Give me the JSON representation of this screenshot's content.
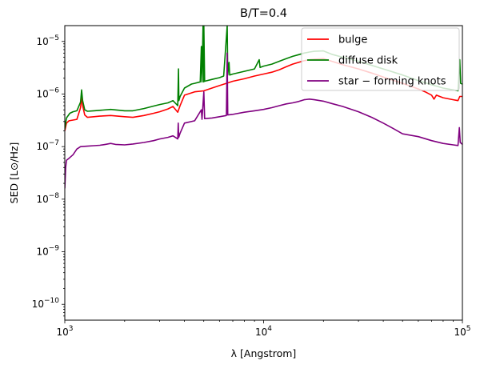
{
  "chart_data": {
    "type": "line",
    "title": "B/T=0.4",
    "xlabel": "λ [Angstrom]",
    "ylabel": "SED [L⊙/Hz]",
    "xscale": "log",
    "yscale": "log",
    "xlim": [
      1000,
      100000
    ],
    "ylim": [
      5e-11,
      2e-05
    ],
    "grid": false,
    "legend_position": "top-right",
    "x_ticks": [
      {
        "value": 1000,
        "base": "10",
        "exp": "3"
      },
      {
        "value": 10000,
        "base": "10",
        "exp": "4"
      },
      {
        "value": 100000,
        "base": "10",
        "exp": "5"
      }
    ],
    "y_ticks": [
      {
        "value": 1e-10,
        "base": "10",
        "exp": "−10"
      },
      {
        "value": 1e-09,
        "base": "10",
        "exp": "−9"
      },
      {
        "value": 1e-08,
        "base": "10",
        "exp": "−8"
      },
      {
        "value": 1e-07,
        "base": "10",
        "exp": "−7"
      },
      {
        "value": 1e-06,
        "base": "10",
        "exp": "−6"
      },
      {
        "value": 1e-05,
        "base": "10",
        "exp": "−5"
      }
    ],
    "series": [
      {
        "name": "bulge",
        "color": "#ff0000",
        "points": [
          [
            1000,
            2e-07
          ],
          [
            1020,
            2.8e-07
          ],
          [
            1050,
            3.1e-07
          ],
          [
            1100,
            3.2e-07
          ],
          [
            1150,
            3.3e-07
          ],
          [
            1200,
            5.5e-07
          ],
          [
            1215,
            9e-07
          ],
          [
            1230,
            6e-07
          ],
          [
            1260,
            4e-07
          ],
          [
            1300,
            3.6e-07
          ],
          [
            1400,
            3.7e-07
          ],
          [
            1500,
            3.8e-07
          ],
          [
            1700,
            3.9e-07
          ],
          [
            2000,
            3.7e-07
          ],
          [
            2200,
            3.6e-07
          ],
          [
            2500,
            3.9e-07
          ],
          [
            2800,
            4.3e-07
          ],
          [
            3000,
            4.6e-07
          ],
          [
            3300,
            5.2e-07
          ],
          [
            3500,
            5.8e-07
          ],
          [
            3700,
            4.5e-07
          ],
          [
            3800,
            6e-07
          ],
          [
            4000,
            9.5e-07
          ],
          [
            4500,
            1.1e-06
          ],
          [
            5000,
            1.15e-06
          ],
          [
            5500,
            1.3e-06
          ],
          [
            6000,
            1.45e-06
          ],
          [
            6500,
            1.6e-06
          ],
          [
            7000,
            1.75e-06
          ],
          [
            8000,
            1.95e-06
          ],
          [
            9000,
            2.2e-06
          ],
          [
            10000,
            2.4e-06
          ],
          [
            11000,
            2.6e-06
          ],
          [
            12000,
            2.9e-06
          ],
          [
            13000,
            3.3e-06
          ],
          [
            14000,
            3.7e-06
          ],
          [
            15000,
            4e-06
          ],
          [
            16000,
            4.3e-06
          ],
          [
            17000,
            4.5e-06
          ],
          [
            18000,
            4.6e-06
          ],
          [
            20000,
            4.7e-06
          ],
          [
            22000,
            4.2e-06
          ],
          [
            25000,
            3.6e-06
          ],
          [
            30000,
            3e-06
          ],
          [
            35000,
            2.5e-06
          ],
          [
            40000,
            2.1e-06
          ],
          [
            50000,
            1.6e-06
          ],
          [
            60000,
            1.25e-06
          ],
          [
            65000,
            1.1e-06
          ],
          [
            70000,
            9.5e-07
          ],
          [
            72000,
            8e-07
          ],
          [
            74000,
            9.5e-07
          ],
          [
            80000,
            8.5e-07
          ],
          [
            90000,
            7.8e-07
          ],
          [
            95000,
            7.5e-07
          ],
          [
            97000,
            9e-07
          ],
          [
            100000,
            9e-07
          ]
        ]
      },
      {
        "name": "diffuse disk",
        "color": "#008000",
        "points": [
          [
            1000,
            2.2e-07
          ],
          [
            1020,
            3.5e-07
          ],
          [
            1060,
            4.3e-07
          ],
          [
            1100,
            4.6e-07
          ],
          [
            1150,
            4.8e-07
          ],
          [
            1200,
            7e-07
          ],
          [
            1215,
            1.2e-06
          ],
          [
            1230,
            7.5e-07
          ],
          [
            1260,
            5e-07
          ],
          [
            1300,
            4.7e-07
          ],
          [
            1400,
            4.8e-07
          ],
          [
            1500,
            4.9e-07
          ],
          [
            1700,
            5.1e-07
          ],
          [
            2000,
            4.8e-07
          ],
          [
            2200,
            4.8e-07
          ],
          [
            2500,
            5.3e-07
          ],
          [
            2800,
            5.9e-07
          ],
          [
            3000,
            6.3e-07
          ],
          [
            3300,
            6.8e-07
          ],
          [
            3500,
            7.5e-07
          ],
          [
            3700,
            6e-07
          ],
          [
            3730,
            3e-06
          ],
          [
            3750,
            7.5e-07
          ],
          [
            3800,
            9e-07
          ],
          [
            4000,
            1.3e-06
          ],
          [
            4340,
            1.55e-06
          ],
          [
            4500,
            1.6e-06
          ],
          [
            4800,
            1.7e-06
          ],
          [
            4861,
            8e-06
          ],
          [
            4900,
            1.7e-06
          ],
          [
            4959,
            2e-05
          ],
          [
            5000,
            1.7e-06
          ],
          [
            5007,
            2e-05
          ],
          [
            5050,
            1.75e-06
          ],
          [
            5500,
            1.9e-06
          ],
          [
            6000,
            2.05e-06
          ],
          [
            6300,
            2.2e-06
          ],
          [
            6563,
            2e-05
          ],
          [
            6600,
            2.3e-06
          ],
          [
            6700,
            4e-06
          ],
          [
            6750,
            2.3e-06
          ],
          [
            7000,
            2.4e-06
          ],
          [
            8000,
            2.7e-06
          ],
          [
            9000,
            3e-06
          ],
          [
            9500,
            4.5e-06
          ],
          [
            9600,
            3.2e-06
          ],
          [
            10000,
            3.4e-06
          ],
          [
            11000,
            3.7e-06
          ],
          [
            12000,
            4.2e-06
          ],
          [
            13000,
            4.7e-06
          ],
          [
            14000,
            5.2e-06
          ],
          [
            15000,
            5.6e-06
          ],
          [
            16000,
            6e-06
          ],
          [
            17000,
            6.3e-06
          ],
          [
            18000,
            6.5e-06
          ],
          [
            20000,
            6.6e-06
          ],
          [
            22000,
            5.7e-06
          ],
          [
            25000,
            5e-06
          ],
          [
            30000,
            4.2e-06
          ],
          [
            35000,
            3.5e-06
          ],
          [
            40000,
            3e-06
          ],
          [
            50000,
            2.3e-06
          ],
          [
            60000,
            1.8e-06
          ],
          [
            70000,
            1.5e-06
          ],
          [
            80000,
            1.3e-06
          ],
          [
            90000,
            1.2e-06
          ],
          [
            95000,
            1.15e-06
          ],
          [
            97000,
            4.5e-06
          ],
          [
            98000,
            1.6e-06
          ],
          [
            100000,
            1.55e-06
          ]
        ]
      },
      {
        "name": "star − forming knots",
        "color": "#800080",
        "points": [
          [
            1000,
            1.6e-08
          ],
          [
            1010,
            4e-08
          ],
          [
            1020,
            5.5e-08
          ],
          [
            1050,
            6e-08
          ],
          [
            1100,
            7e-08
          ],
          [
            1150,
            9e-08
          ],
          [
            1200,
            1e-07
          ],
          [
            1300,
            1.02e-07
          ],
          [
            1400,
            1.04e-07
          ],
          [
            1500,
            1.06e-07
          ],
          [
            1600,
            1.1e-07
          ],
          [
            1700,
            1.15e-07
          ],
          [
            1800,
            1.1e-07
          ],
          [
            2000,
            1.08e-07
          ],
          [
            2200,
            1.12e-07
          ],
          [
            2500,
            1.2e-07
          ],
          [
            2800,
            1.3e-07
          ],
          [
            3000,
            1.4e-07
          ],
          [
            3300,
            1.5e-07
          ],
          [
            3500,
            1.6e-07
          ],
          [
            3700,
            1.4e-07
          ],
          [
            3720,
            2.8e-07
          ],
          [
            3740,
            1.5e-07
          ],
          [
            3800,
            1.8e-07
          ],
          [
            4000,
            2.8e-07
          ],
          [
            4500,
            3.1e-07
          ],
          [
            4861,
            5e-07
          ],
          [
            4900,
            3.3e-07
          ],
          [
            5007,
            1.1e-06
          ],
          [
            5050,
            3.4e-07
          ],
          [
            5500,
            3.5e-07
          ],
          [
            6000,
            3.7e-07
          ],
          [
            6500,
            3.9e-07
          ],
          [
            6563,
            6e-06
          ],
          [
            6600,
            4e-07
          ],
          [
            7000,
            4.1e-07
          ],
          [
            8000,
            4.5e-07
          ],
          [
            9000,
            4.8e-07
          ],
          [
            10000,
            5.1e-07
          ],
          [
            11000,
            5.5e-07
          ],
          [
            12000,
            6e-07
          ],
          [
            13000,
            6.5e-07
          ],
          [
            14000,
            6.8e-07
          ],
          [
            15000,
            7.2e-07
          ],
          [
            16000,
            7.8e-07
          ],
          [
            17000,
            8e-07
          ],
          [
            18000,
            7.8e-07
          ],
          [
            20000,
            7.3e-07
          ],
          [
            22000,
            6.6e-07
          ],
          [
            25000,
            5.8e-07
          ],
          [
            30000,
            4.6e-07
          ],
          [
            35000,
            3.6e-07
          ],
          [
            40000,
            2.8e-07
          ],
          [
            45000,
            2.2e-07
          ],
          [
            50000,
            1.75e-07
          ],
          [
            60000,
            1.55e-07
          ],
          [
            70000,
            1.3e-07
          ],
          [
            80000,
            1.15e-07
          ],
          [
            90000,
            1.08e-07
          ],
          [
            95000,
            1.05e-07
          ],
          [
            96500,
            2.3e-07
          ],
          [
            97500,
            1.2e-07
          ],
          [
            100000,
            1.1e-07
          ]
        ]
      }
    ]
  }
}
